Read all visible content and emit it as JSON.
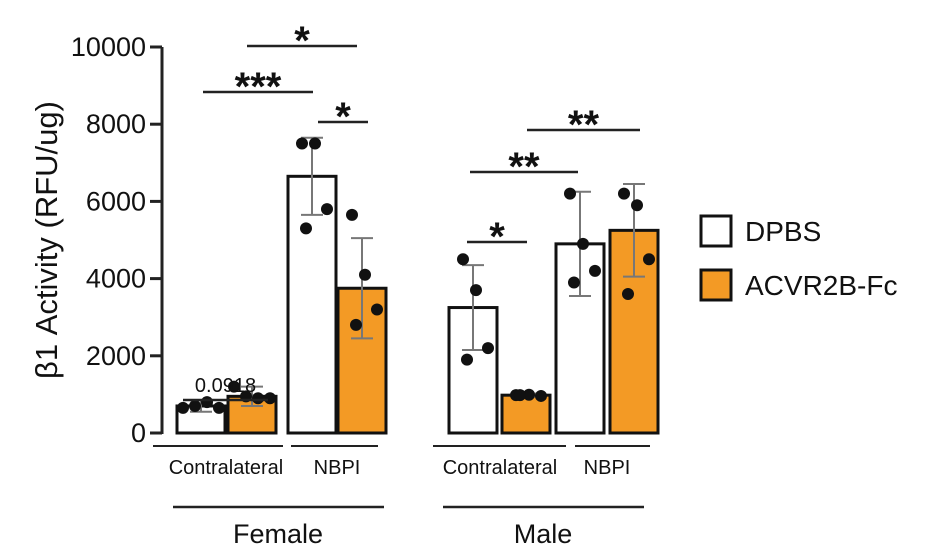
{
  "chart_data": {
    "type": "bar",
    "title": "",
    "xlabel": "",
    "ylabel": "β1 Activity (RFU/ug)",
    "ylim": [
      0,
      10000
    ],
    "yticks": [
      0,
      2000,
      4000,
      6000,
      8000,
      10000
    ],
    "categories": [
      {
        "sex": "Female",
        "tissue": "Contralateral"
      },
      {
        "sex": "Female",
        "tissue": "NBPI"
      },
      {
        "sex": "Male",
        "tissue": "Contralateral"
      },
      {
        "sex": "Male",
        "tissue": "NBPI"
      }
    ],
    "group_labels": [
      "Female",
      "Male"
    ],
    "series": [
      {
        "name": "DPBS",
        "color": "#ffffff",
        "values": [
          700,
          6650,
          3250,
          4900
        ],
        "errors": [
          150,
          1000,
          1100,
          1350
        ],
        "points": [
          [
            650,
            700,
            800,
            650
          ],
          [
            7500,
            7500,
            5800,
            5300
          ],
          [
            4500,
            3700,
            2200,
            1900
          ],
          [
            6200,
            4900,
            4200,
            3900
          ]
        ]
      },
      {
        "name": "ACVR2B-Fc",
        "color": "#F39A25",
        "values": [
          950,
          3750,
          980,
          5250
        ],
        "errors": [
          250,
          1300,
          40,
          1200
        ],
        "points": [
          [
            1200,
            950,
            900,
            900
          ],
          [
            5650,
            4100,
            3200,
            2800
          ],
          [
            980,
            990,
            960,
            980
          ],
          [
            6200,
            5900,
            4500,
            3600
          ]
        ]
      }
    ],
    "annotations": [
      {
        "label": "0.0918",
        "compare": [
          "Female Contralateral DPBS",
          "Female Contralateral ACVR2B-Fc"
        ]
      },
      {
        "label": "***",
        "compare": [
          "Female Contralateral DPBS",
          "Female NBPI DPBS"
        ]
      },
      {
        "label": "*",
        "compare": [
          "Female Contralateral ACVR2B-Fc",
          "Female NBPI ACVR2B-Fc"
        ]
      },
      {
        "label": "*",
        "compare": [
          "Female NBPI DPBS",
          "Female NBPI ACVR2B-Fc"
        ]
      },
      {
        "label": "*",
        "compare": [
          "Male Contralateral DPBS",
          "Male Contralateral ACVR2B-Fc"
        ]
      },
      {
        "label": "**",
        "compare": [
          "Male Contralateral DPBS",
          "Male NBPI DPBS"
        ]
      },
      {
        "label": "**",
        "compare": [
          "Male Contralateral ACVR2B-Fc",
          "Male NBPI ACVR2B-Fc"
        ]
      }
    ],
    "legend_position": "right",
    "grid": false
  }
}
